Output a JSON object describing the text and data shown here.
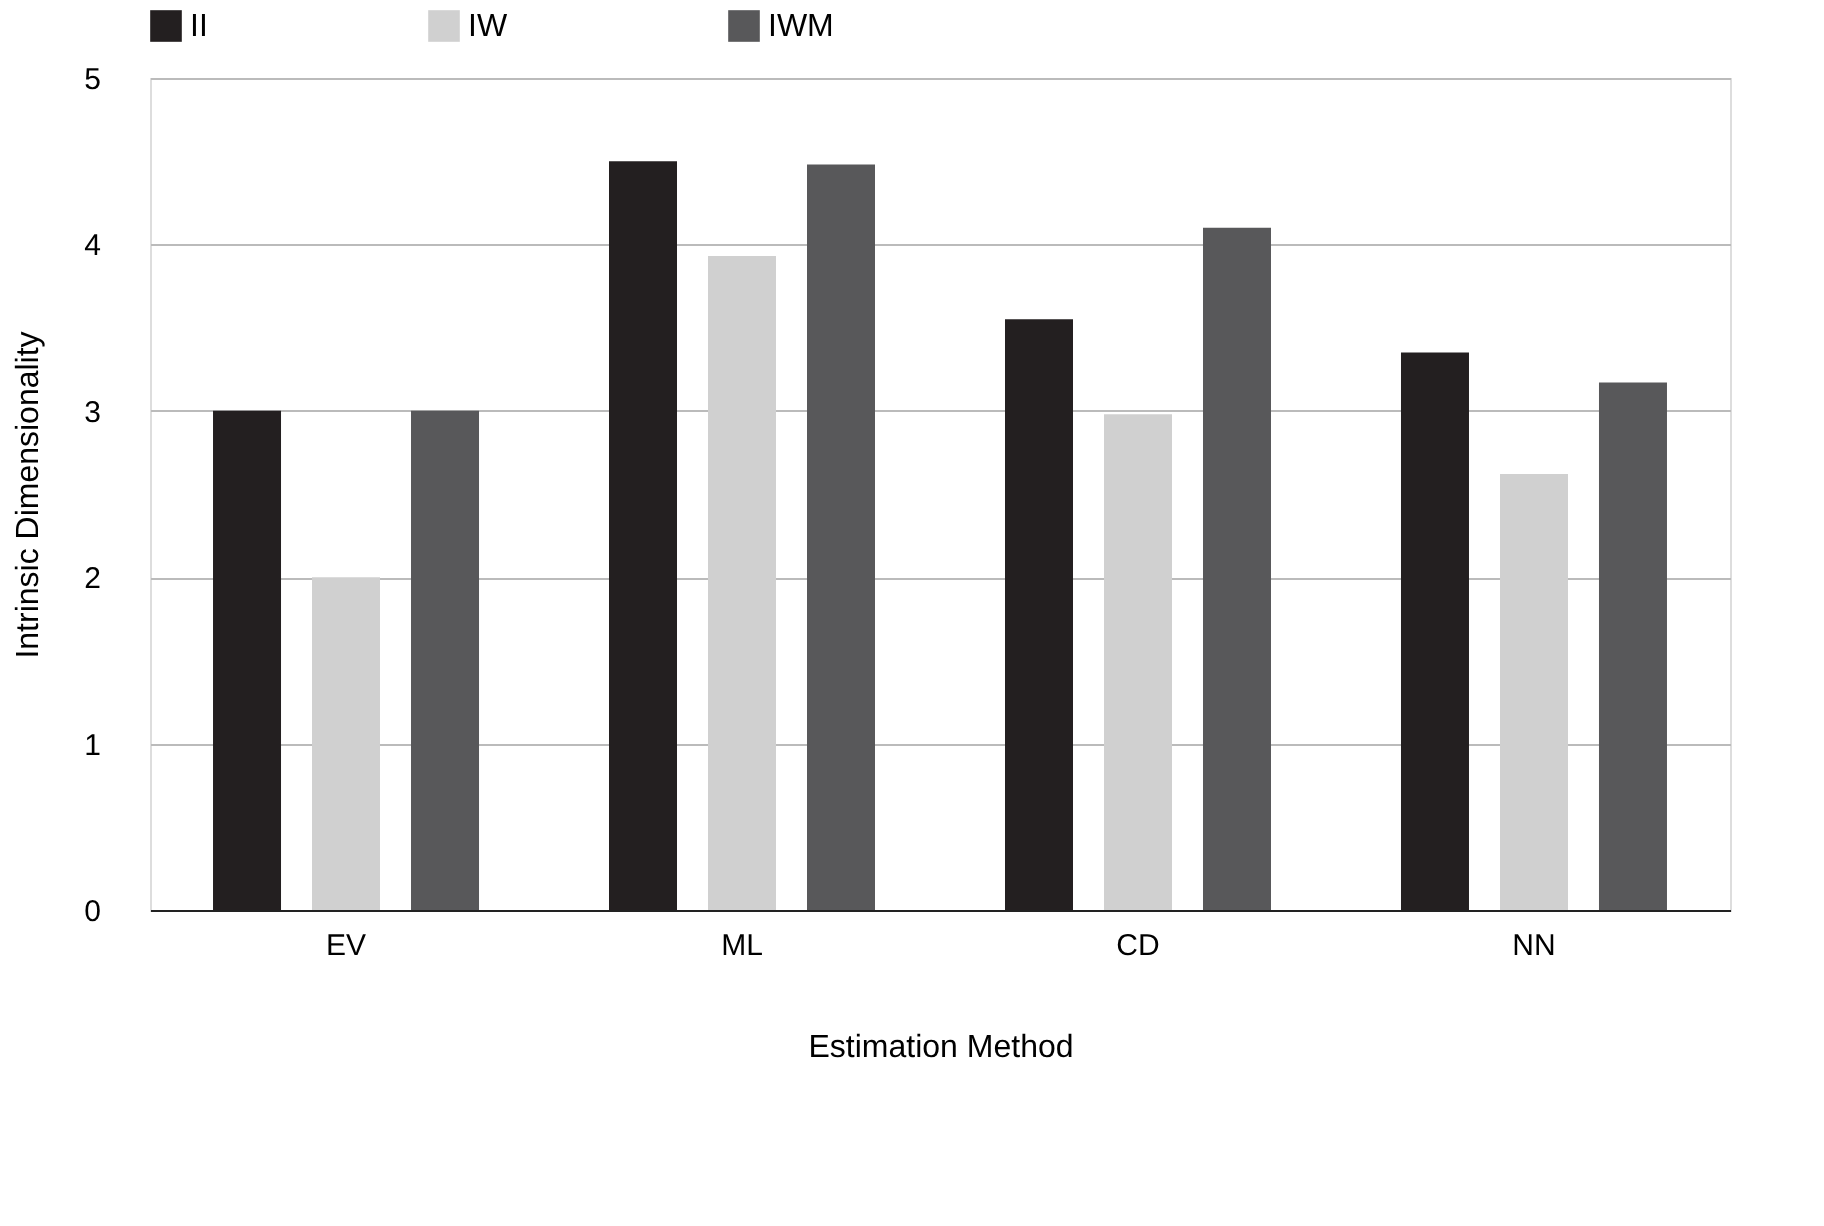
{
  "chart_data": {
    "type": "bar",
    "xlabel": "Estimation Method",
    "ylabel": "Intrinsic Dimensionality",
    "categories": [
      "EV",
      "ML",
      "CD",
      "NN"
    ],
    "series": [
      {
        "name": "II",
        "color": "#231f20",
        "values": [
          3.0,
          4.5,
          3.55,
          3.35
        ]
      },
      {
        "name": "IW",
        "color": "#d0d0d0",
        "values": [
          2.0,
          3.93,
          2.98,
          2.62
        ]
      },
      {
        "name": "IWM",
        "color": "#58585a",
        "values": [
          3.0,
          4.48,
          4.1,
          3.17
        ]
      }
    ],
    "ylim": [
      0,
      5
    ],
    "yticks": [
      0,
      1,
      2,
      3,
      4,
      5
    ],
    "grid": "y",
    "legend": "top"
  }
}
